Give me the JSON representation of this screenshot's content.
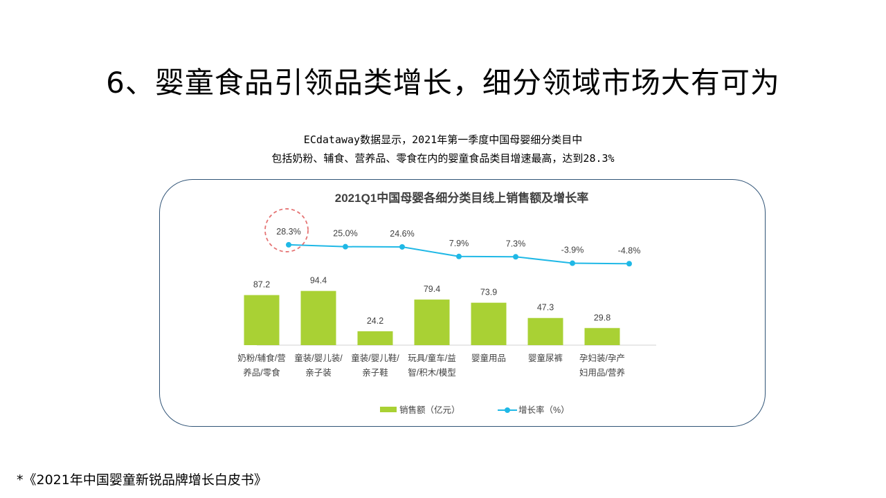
{
  "slide": {
    "title": "6、婴童食品引领品类增长，细分领域市场大有可为",
    "subtitle_line1": "ECdataway数据显示，2021年第一季度中国母婴细分类目中",
    "subtitle_line2": "包括奶粉、辅食、营养品、零食在内的婴童食品类目增速最高，达到28.3%",
    "footnote": "*《2021年中国婴童新锐品牌增长白皮书》"
  },
  "colors": {
    "bar": "#a9d134",
    "line": "#1fb8e6",
    "highlight_circle": "#e57373",
    "frame_border": "#2f5376"
  },
  "chart_data": {
    "type": "bar",
    "title": "2021Q1中国母婴各细分类目线上销售额及增长率",
    "categories": [
      [
        "奶粉/辅食/营",
        "养品/零食"
      ],
      [
        "童装/婴儿装/",
        "亲子装"
      ],
      [
        "童装/婴儿鞋/",
        "亲子鞋"
      ],
      [
        "玩具/童车/益",
        "智/积木/模型"
      ],
      [
        "婴童用品"
      ],
      [
        "婴童尿裤"
      ],
      [
        "孕妇装/孕产",
        "妇用品/营养"
      ]
    ],
    "series": [
      {
        "name": "销售额（亿元）",
        "type": "bar",
        "values": [
          87.2,
          94.4,
          24.2,
          79.4,
          73.9,
          47.3,
          29.8
        ],
        "labels": [
          "87.2",
          "94.4",
          "24.2",
          "79.4",
          "73.9",
          "47.3",
          "29.8"
        ]
      },
      {
        "name": "增长率（%）",
        "type": "line",
        "values": [
          28.3,
          25.0,
          24.6,
          7.9,
          7.3,
          -3.9,
          -4.8
        ],
        "labels": [
          "28.3%",
          "25.0%",
          "24.6%",
          "7.9%",
          "7.3%",
          "-3.9%",
          "-4.8%"
        ]
      }
    ],
    "highlight_index": 0,
    "legend_position": "bottom",
    "grid": false
  }
}
